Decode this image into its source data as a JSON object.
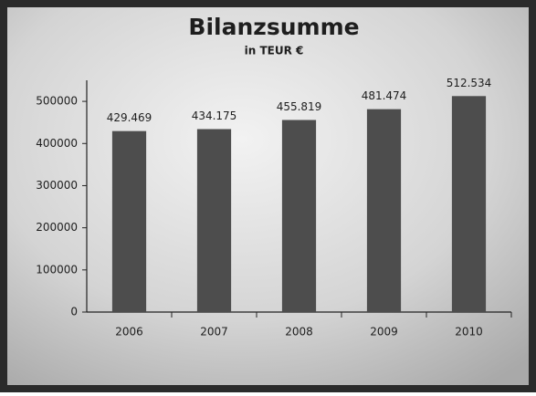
{
  "chart_data": {
    "type": "bar",
    "title": "Bilanzsumme",
    "subtitle": "in TEUR €",
    "categories": [
      "2006",
      "2007",
      "2008",
      "2009",
      "2010"
    ],
    "values": [
      429469,
      434175,
      455819,
      481474,
      512534
    ],
    "value_labels": [
      "429.469",
      "434.175",
      "455.819",
      "481.474",
      "512.534"
    ],
    "color": "#4d4d4d",
    "ylim": [
      0,
      550000
    ],
    "yticks": [
      0,
      100000,
      200000,
      300000,
      400000,
      500000
    ]
  }
}
